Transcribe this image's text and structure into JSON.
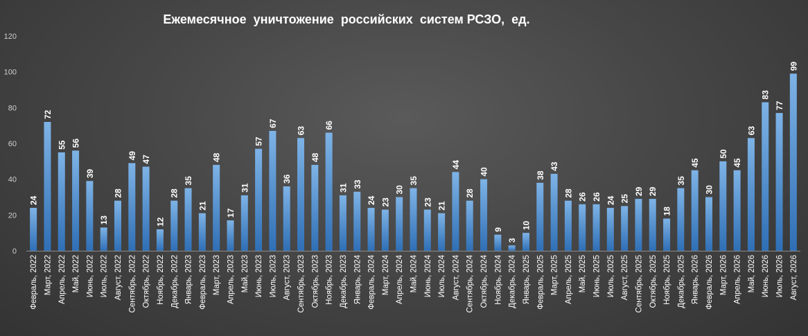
{
  "chart_data": {
    "type": "bar",
    "title": "Ежемесячное  уничтожение  российских  систем РСЗО,  ед.",
    "xlabel": "",
    "ylabel": "",
    "ylim": [
      0,
      120
    ],
    "yticks": [
      "0",
      "20",
      "40",
      "60",
      "80",
      "100",
      "120"
    ],
    "grid": false,
    "legend": "none",
    "colors": {
      "bar_top": "#7eb3e6",
      "bar_bottom": "#2f6fb5",
      "text": "#ffffff",
      "axis": "#cfcfcf"
    },
    "categories": [
      "Февраль, 2022",
      "Март, 2022",
      "Апрель, 2022",
      "Май, 2022",
      "Июнь, 2022",
      "Июль, 2022",
      "Август, 2022",
      "Сентябрь, 2022",
      "Октябрь, 2022",
      "Ноябрь, 2022",
      "Декабрь, 2022",
      "Январь, 2023",
      "Февраль, 2023",
      "Март, 2023",
      "Апрель, 2023",
      "Май, 2023",
      "Июнь, 2023",
      "Июль, 2023",
      "Август, 2023",
      "Сентябрь, 2023",
      "Октябрь, 2023",
      "Ноябрь, 2023",
      "Декабрь, 2023",
      "Январь, 2024",
      "Февраль, 2024",
      "Март, 2024",
      "Апрель, 2024",
      "Май, 2024",
      "Июнь, 2024",
      "Июль, 2024",
      "Август, 2024",
      "Сентябрь, 2024",
      "Октябрь, 2024",
      "Ноябрь, 2024",
      "Декабрь, 2024",
      "Январь, 2025",
      "Февраль, 2025",
      "Март, 2025",
      "Апрель, 2025",
      "Май, 2025",
      "Июнь, 2025",
      "Июль, 2025",
      "Август, 2025",
      "Сентябрь, 2025",
      "Октябрь, 2025",
      "Ноябрь, 2025",
      "Декабрь, 2025",
      "Январь, 2026",
      "Февраль, 2026",
      "Март, 2026",
      "Апрель, 2026",
      "Май, 2026",
      "Июнь, 2026",
      "Июль, 2026",
      "Август, 2026"
    ],
    "values": [
      24,
      72,
      55,
      56,
      39,
      13,
      28,
      49,
      47,
      12,
      28,
      35,
      21,
      48,
      17,
      31,
      57,
      67,
      36,
      63,
      48,
      66,
      31,
      33,
      24,
      23,
      30,
      35,
      23,
      21,
      44,
      28,
      40,
      9,
      3,
      10,
      38,
      43,
      28,
      26,
      26,
      24,
      25,
      29,
      29,
      18,
      35,
      45,
      30,
      50,
      45,
      63,
      83,
      77,
      99
    ]
  }
}
